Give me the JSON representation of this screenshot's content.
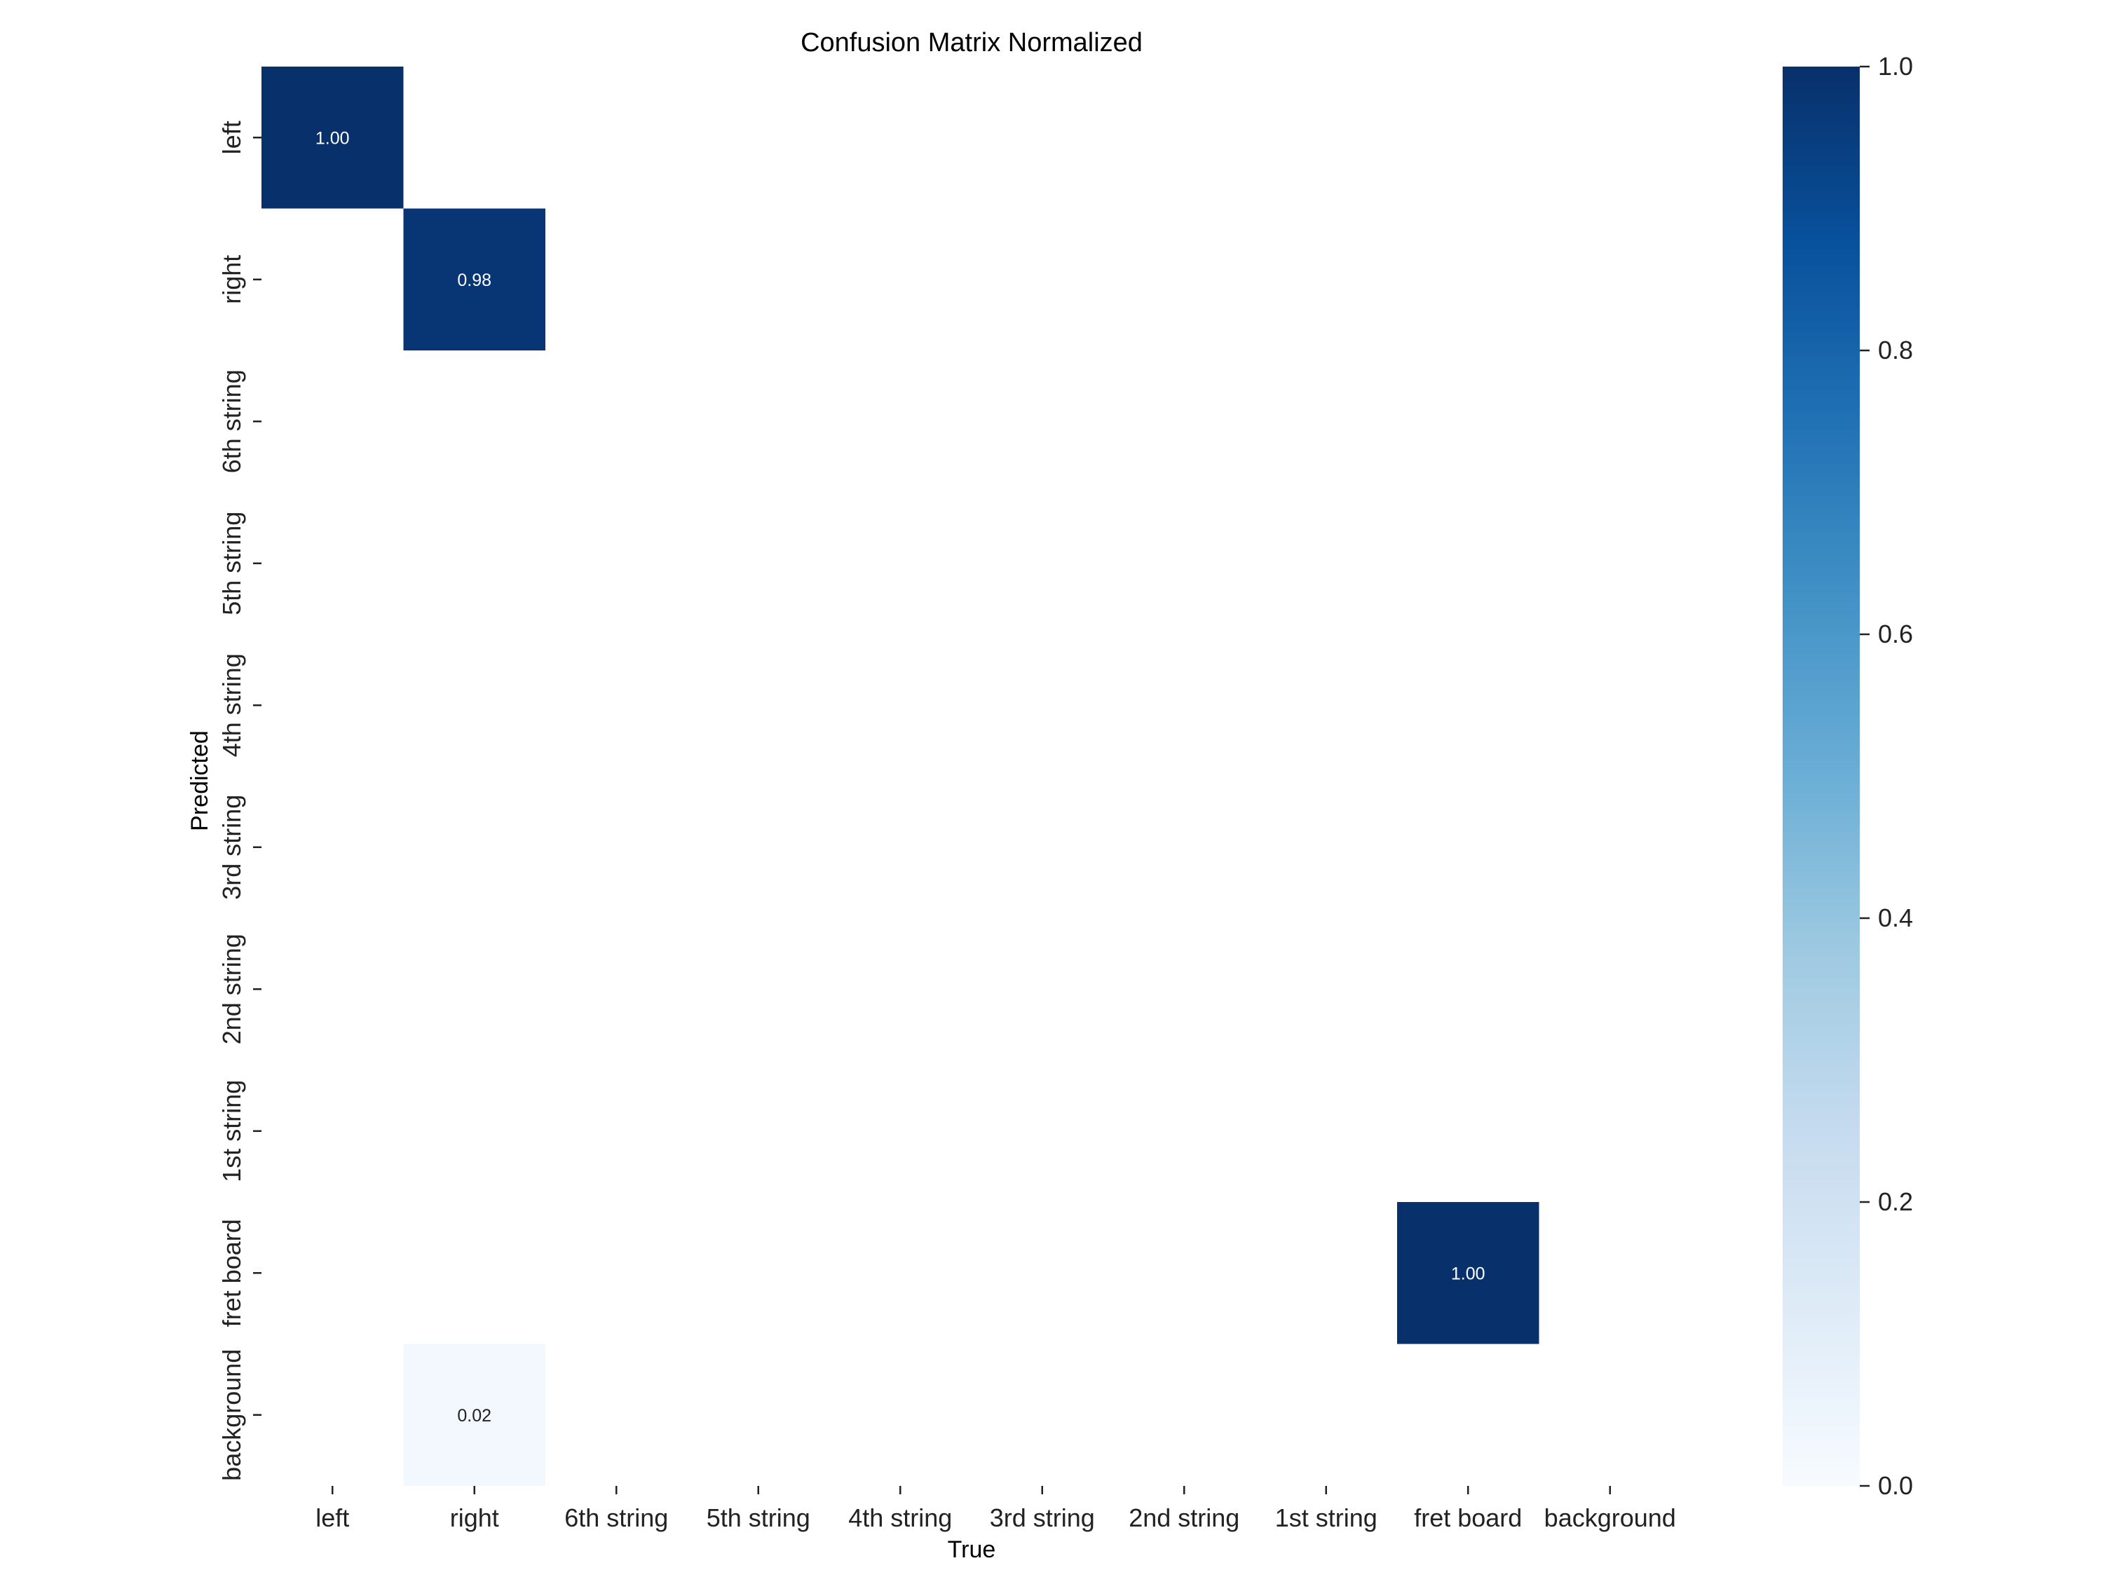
{
  "chart_data": {
    "type": "heatmap",
    "title": "Confusion Matrix Normalized",
    "xlabel": "True",
    "ylabel": "Predicted",
    "x_categories": [
      "left",
      "right",
      "6th string",
      "5th string",
      "4th string",
      "3rd string",
      "2nd string",
      "1st string",
      "fret board",
      "background"
    ],
    "y_categories": [
      "left",
      "right",
      "6th string",
      "5th string",
      "4th string",
      "3rd string",
      "2nd string",
      "1st string",
      "fret board",
      "background"
    ],
    "values": [
      [
        1.0,
        null,
        null,
        null,
        null,
        null,
        null,
        null,
        null,
        null
      ],
      [
        null,
        0.98,
        null,
        null,
        null,
        null,
        null,
        null,
        null,
        null
      ],
      [
        null,
        null,
        null,
        null,
        null,
        null,
        null,
        null,
        null,
        null
      ],
      [
        null,
        null,
        null,
        null,
        null,
        null,
        null,
        null,
        null,
        null
      ],
      [
        null,
        null,
        null,
        null,
        null,
        null,
        null,
        null,
        null,
        null
      ],
      [
        null,
        null,
        null,
        null,
        null,
        null,
        null,
        null,
        null,
        null
      ],
      [
        null,
        null,
        null,
        null,
        null,
        null,
        null,
        null,
        null,
        null
      ],
      [
        null,
        null,
        null,
        null,
        null,
        null,
        null,
        null,
        null,
        null
      ],
      [
        null,
        null,
        null,
        null,
        null,
        null,
        null,
        null,
        1.0,
        null
      ],
      [
        null,
        0.02,
        null,
        null,
        null,
        null,
        null,
        null,
        null,
        null
      ]
    ],
    "cell_labels": [
      [
        "1.00",
        "",
        "",
        "",
        "",
        "",
        "",
        "",
        "",
        ""
      ],
      [
        "",
        "0.98",
        "",
        "",
        "",
        "",
        "",
        "",
        "",
        ""
      ],
      [
        "",
        "",
        "",
        "",
        "",
        "",
        "",
        "",
        "",
        ""
      ],
      [
        "",
        "",
        "",
        "",
        "",
        "",
        "",
        "",
        "",
        ""
      ],
      [
        "",
        "",
        "",
        "",
        "",
        "",
        "",
        "",
        "",
        ""
      ],
      [
        "",
        "",
        "",
        "",
        "",
        "",
        "",
        "",
        "",
        ""
      ],
      [
        "",
        "",
        "",
        "",
        "",
        "",
        "",
        "",
        "",
        ""
      ],
      [
        "",
        "",
        "",
        "",
        "",
        "",
        "",
        "",
        "",
        ""
      ],
      [
        "",
        "",
        "",
        "",
        "",
        "",
        "",
        "",
        "1.00",
        ""
      ],
      [
        "",
        "0.02",
        "",
        "",
        "",
        "",
        "",
        "",
        "",
        ""
      ]
    ],
    "colormap": "Blues",
    "colorbar": {
      "range": [
        0,
        1
      ],
      "ticks": [
        0.0,
        0.2,
        0.4,
        0.6,
        0.8,
        1.0
      ],
      "tick_labels": [
        "0.0",
        "0.2",
        "0.4",
        "0.6",
        "0.8",
        "1.0"
      ]
    },
    "grid": false
  }
}
